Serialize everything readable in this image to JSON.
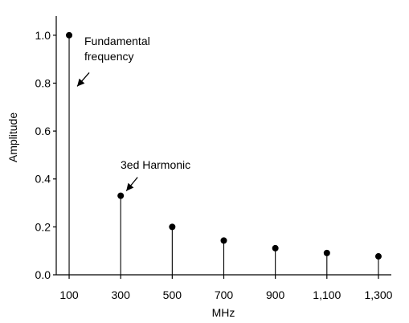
{
  "chart_data": {
    "type": "stem",
    "title": "",
    "xlabel": "MHz",
    "ylabel": "Amplitude",
    "x": [
      100,
      300,
      500,
      700,
      900,
      1100,
      1300
    ],
    "values": [
      1.0,
      0.33,
      0.2,
      0.143,
      0.111,
      0.091,
      0.077
    ],
    "x_tick_labels": [
      "100",
      "300",
      "500",
      "700",
      "900",
      "1,100",
      "1,300"
    ],
    "y_ticks": [
      0.0,
      0.2,
      0.4,
      0.6,
      0.8,
      1.0
    ],
    "y_tick_labels": [
      "0.0",
      "0.2",
      "0.4",
      "0.6",
      "0.8",
      "1.0"
    ],
    "xlim": [
      50,
      1350
    ],
    "ylim": [
      0,
      1.08
    ],
    "grid": false,
    "colors": {
      "marks": "#000000",
      "axes": "#000000",
      "background": "#ffffff"
    },
    "annotations": [
      {
        "lines": [
          "Fundamental",
          "frequency"
        ],
        "target_x": 100,
        "target_y": 0.8
      },
      {
        "lines": [
          "3ed Harmonic"
        ],
        "target_x": 300,
        "target_y": 0.33
      }
    ]
  }
}
